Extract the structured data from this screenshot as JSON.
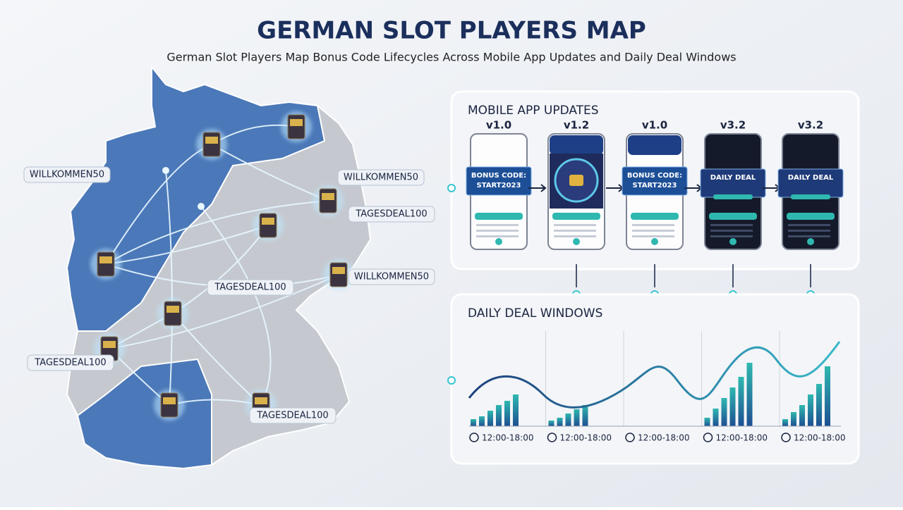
{
  "header": {
    "title": "GERMAN SLOT PLAYERS MAP",
    "subtitle": "German Slot Players Map Bonus Code Lifecycles Across Mobile App Updates and Daily Deal Windows"
  },
  "map": {
    "labels": [
      "WILLKOMMEN50",
      "WILLKOMMEN50",
      "TAGESDEAL100",
      "TAGESDEAL100",
      "WILLKOMMEN50",
      "TAGESDEAL100",
      "TAGESDEAL100"
    ]
  },
  "app_updates": {
    "title": "MOBILE APP UPDATES",
    "phones": [
      {
        "version": "v1.0",
        "screen_text": "BONUS CODE: START2023"
      },
      {
        "version": "v1.2"
      },
      {
        "version": "v1.0",
        "screen_text": "BONUS CODE: START2023"
      },
      {
        "version": "v3.2",
        "screen_text": "DAILY DEAL"
      },
      {
        "version": "v3.2",
        "screen_text": "DAILY DEAL"
      }
    ]
  },
  "deal_windows": {
    "title": "DAILY DEAL WINDOWS",
    "windows": [
      "12:00-18:00",
      "12:00-18:00",
      "12:00-18:00",
      "12:00-18:00",
      "12:00-18:00"
    ]
  }
}
